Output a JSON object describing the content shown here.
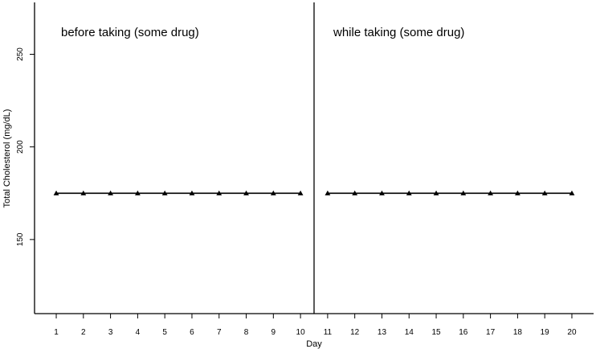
{
  "chart_data": {
    "type": "line",
    "xlabel": "Day",
    "ylabel": "Total Cholesterol (mg/dL)",
    "x_ticks": [
      1,
      2,
      3,
      4,
      5,
      6,
      7,
      8,
      9,
      10,
      11,
      12,
      13,
      14,
      15,
      16,
      17,
      18,
      19,
      20
    ],
    "y_ticks": [
      150,
      200,
      250
    ],
    "xlim": [
      0.2,
      20.8
    ],
    "ylim": [
      110,
      278
    ],
    "phase_change_after_day": 10.5,
    "phases": [
      {
        "label": "before taking (some drug)",
        "x": [
          1,
          2,
          3,
          4,
          5,
          6,
          7,
          8,
          9,
          10
        ],
        "values": [
          175,
          175,
          175,
          175,
          175,
          175,
          175,
          175,
          175,
          175
        ]
      },
      {
        "label": "while taking (some drug)",
        "x": [
          11,
          12,
          13,
          14,
          15,
          16,
          17,
          18,
          19,
          20
        ],
        "values": [
          175,
          175,
          175,
          175,
          175,
          175,
          175,
          175,
          175,
          175
        ]
      }
    ],
    "marker": "triangle",
    "grid": false,
    "colors": {
      "line": "#000000",
      "marker": "#000000"
    }
  }
}
